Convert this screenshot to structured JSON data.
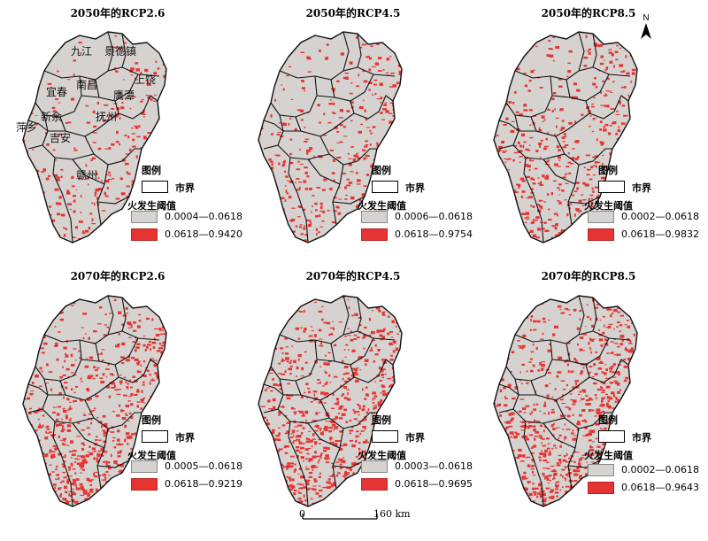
{
  "panels": [
    {
      "title": "2050年的RCP2.6",
      "legend_title": "图例",
      "boundary_label": "市界",
      "threshold_title": "火发生阈值",
      "low_range": "0.0004—0.0618",
      "high_range": "0.0618—0.9420",
      "fire_density": 0.18
    },
    {
      "title": "2050年的RCP4.5",
      "legend_title": "图例",
      "boundary_label": "市界",
      "threshold_title": "火发生阈值",
      "low_range": "0.0006—0.0618",
      "high_range": "0.0618—0.9754",
      "fire_density": 0.28
    },
    {
      "title": "2050年的RCP8.5",
      "legend_title": "图例",
      "boundary_label": "市界",
      "threshold_title": "火发生阈值",
      "low_range": "0.0002—0.0618",
      "high_range": "0.0618—0.9832",
      "fire_density": 0.38
    },
    {
      "title": "2070年的RCP2.6",
      "legend_title": "图例",
      "boundary_label": "市界",
      "threshold_title": "火发生阈值",
      "low_range": "0.0005—0.0618",
      "high_range": "0.0618—0.9219",
      "fire_density": 0.5
    },
    {
      "title": "2070年的RCP4.5",
      "legend_title": "图例",
      "boundary_label": "市界",
      "threshold_title": "火发生阈值",
      "low_range": "0.0003—0.0618",
      "high_range": "0.0618—0.9695",
      "fire_density": 0.55
    },
    {
      "title": "2070年的RCP8.5",
      "legend_title": "图例",
      "boundary_label": "市界",
      "threshold_title": "火发生阈值",
      "low_range": "0.0002—0.0618",
      "high_range": "0.0618—0.9643",
      "fire_density": 0.62
    }
  ],
  "city_labels": [
    "九江",
    "景德镇",
    "上饶",
    "南昌",
    "宜春",
    "鹰潭",
    "新余",
    "抚州",
    "萍乡",
    "吉安",
    "赣州"
  ],
  "north_label": "N",
  "scale": {
    "start": "0",
    "end": "160 km"
  },
  "colors": {
    "low": "#d6d2d0",
    "high": "#e53532",
    "boundary": "#111111",
    "background": "#ffffff"
  },
  "icons": {
    "north_arrow": "north-arrow-icon"
  }
}
